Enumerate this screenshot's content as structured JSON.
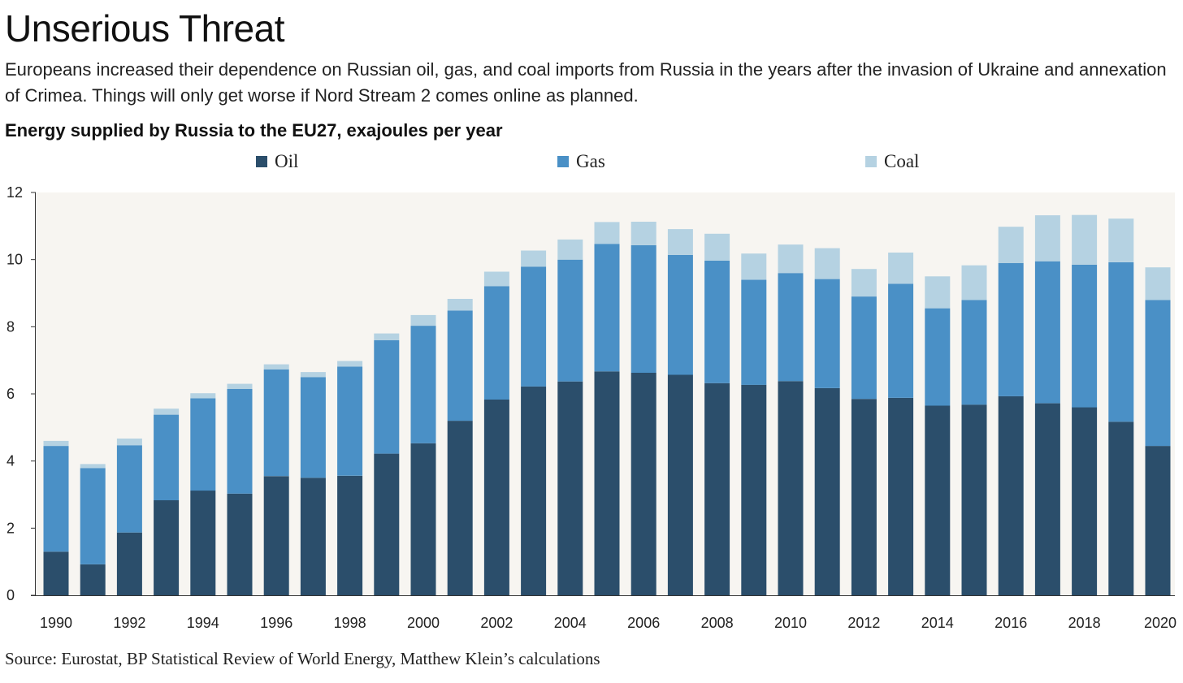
{
  "title": "Unserious Threat",
  "subtitle": "Europeans increased their dependence on Russian oil, gas, and coal imports from Russia in the years after the invasion of Ukraine and annexation of Crimea. Things will only get worse if Nord Stream 2 comes online as planned.",
  "chart_heading": "Energy supplied by Russia to the EU27, exajoules per year",
  "source": "Source: Eurostat, BP Statistical Review of World Energy, Matthew Klein’s calculations",
  "colors": {
    "oil": "#2b4e6b",
    "gas": "#4a90c6",
    "coal": "#b5d2e2",
    "plot_bg": "#f7f5f1"
  },
  "chart_data": {
    "type": "bar",
    "stacked": true,
    "title": "Energy supplied by Russia to the EU27, exajoules per year",
    "xlabel": "",
    "ylabel": "",
    "ylim": [
      0,
      12
    ],
    "yticks": [
      0,
      2,
      4,
      6,
      8,
      10,
      12
    ],
    "grid": false,
    "legend_position": "top",
    "categories": [
      "1990",
      "1991",
      "1992",
      "1993",
      "1994",
      "1995",
      "1996",
      "1997",
      "1998",
      "1999",
      "2000",
      "2001",
      "2002",
      "2003",
      "2004",
      "2005",
      "2006",
      "2007",
      "2008",
      "2009",
      "2010",
      "2011",
      "2012",
      "2013",
      "2014",
      "2015",
      "2016",
      "2017",
      "2018",
      "2019",
      "2020"
    ],
    "xtick_labels": [
      "1990",
      "1992",
      "1994",
      "1996",
      "1998",
      "2000",
      "2002",
      "2004",
      "2006",
      "2008",
      "2010",
      "2012",
      "2014",
      "2016",
      "2018",
      "2020"
    ],
    "series": [
      {
        "name": "Oil",
        "color": "#2b4e6b",
        "values": [
          1.3,
          0.92,
          1.87,
          2.83,
          3.12,
          3.03,
          3.55,
          3.5,
          3.56,
          4.22,
          4.53,
          5.2,
          5.83,
          6.22,
          6.37,
          6.67,
          6.63,
          6.57,
          6.32,
          6.27,
          6.38,
          6.17,
          5.85,
          5.88,
          5.65,
          5.68,
          5.93,
          5.72,
          5.6,
          5.17,
          4.45
        ]
      },
      {
        "name": "Gas",
        "color": "#4a90c6",
        "values": [
          3.15,
          2.87,
          2.6,
          2.55,
          2.75,
          3.12,
          3.18,
          3.0,
          3.25,
          3.38,
          3.5,
          3.28,
          3.38,
          3.57,
          3.63,
          3.8,
          3.8,
          3.57,
          3.65,
          3.13,
          3.22,
          3.25,
          3.05,
          3.4,
          2.9,
          3.12,
          3.97,
          4.23,
          4.25,
          4.75,
          4.35
        ]
      },
      {
        "name": "Coal",
        "color": "#b5d2e2",
        "values": [
          0.15,
          0.12,
          0.2,
          0.18,
          0.15,
          0.15,
          0.15,
          0.15,
          0.17,
          0.2,
          0.32,
          0.35,
          0.43,
          0.48,
          0.6,
          0.65,
          0.7,
          0.77,
          0.8,
          0.78,
          0.85,
          0.92,
          0.82,
          0.93,
          0.95,
          1.03,
          1.08,
          1.37,
          1.48,
          1.3,
          0.97
        ]
      }
    ]
  }
}
